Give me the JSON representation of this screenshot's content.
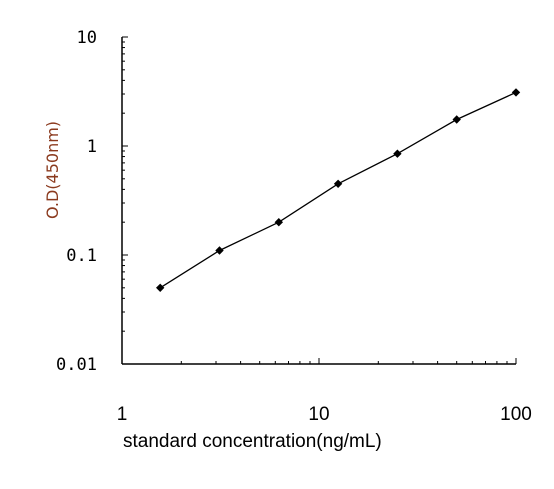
{
  "chart_data": {
    "type": "line",
    "xlabel": "standard concentration(ng/mL)",
    "ylabel": "O.D(450nm)",
    "xscale": "log",
    "yscale": "log",
    "xlim": [
      1,
      100
    ],
    "ylim": [
      0.01,
      10
    ],
    "x_tick_labels": [
      "1",
      "10",
      "100"
    ],
    "y_tick_labels": [
      "10",
      "1",
      "0.1",
      "0.01"
    ],
    "grid": false,
    "legend": "none",
    "series": [
      {
        "x": [
          1.5625,
          3.125,
          6.25,
          12.5,
          25,
          50,
          100
        ],
        "y": [
          0.05,
          0.11,
          0.2,
          0.45,
          0.85,
          1.75,
          3.1
        ],
        "marker": "diamond"
      }
    ],
    "colors": {
      "line": "#000000",
      "marker": "#000000",
      "ylabel": "#8b3a1e"
    }
  }
}
